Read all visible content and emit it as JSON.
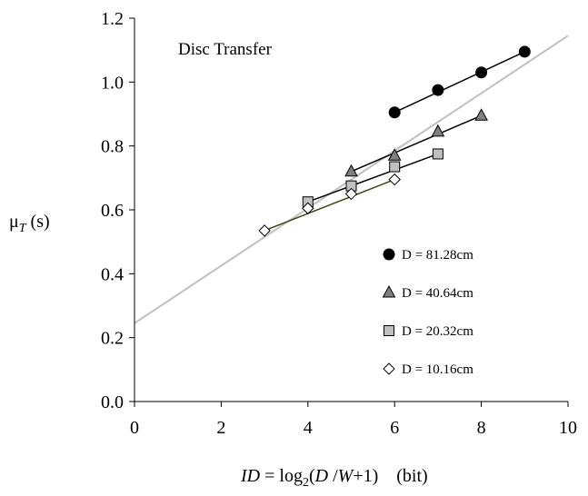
{
  "chart_data": {
    "type": "scatter",
    "annotation": "Disc Transfer",
    "xlabel": {
      "var": "ID",
      "eq": " = log",
      "sub": "2",
      "paren_open": "(",
      "d": "D",
      "slash": " /",
      "w": "W",
      "rest": "+1)",
      "unit": "(bit)"
    },
    "ylabel": {
      "mu": "μ",
      "sub": "T",
      "unit": " (s)"
    },
    "xlim": [
      0,
      10
    ],
    "ylim": [
      0,
      1.2
    ],
    "x_ticks": [
      "0",
      "2",
      "4",
      "6",
      "8",
      "10"
    ],
    "y_ticks": [
      "0.0",
      "0.2",
      "0.4",
      "0.6",
      "0.8",
      "1.0",
      "1.2"
    ],
    "legend_position": "bottom-right",
    "series": [
      {
        "name": "D = 81.28cm",
        "marker": "circle",
        "fill": "#000000",
        "line_color": "#000000",
        "x": [
          6,
          7,
          8,
          9
        ],
        "y": [
          0.905,
          0.975,
          1.03,
          1.095
        ]
      },
      {
        "name": "D = 40.64cm",
        "marker": "triangle",
        "fill": "#808080",
        "line_color": "#000000",
        "x": [
          5,
          6,
          7,
          8
        ],
        "y": [
          0.72,
          0.77,
          0.845,
          0.895
        ]
      },
      {
        "name": "D = 20.32cm",
        "marker": "square",
        "fill": "#c0c0c0",
        "line_color": "#000000",
        "x": [
          4,
          5,
          6,
          7
        ],
        "y": [
          0.625,
          0.675,
          0.735,
          0.775
        ]
      },
      {
        "name": "D = 10.16cm",
        "marker": "diamond",
        "fill": "#ffffff",
        "line_color": "#3d4a0c",
        "x": [
          3,
          4,
          5,
          6
        ],
        "y": [
          0.535,
          0.605,
          0.65,
          0.695
        ]
      }
    ],
    "fit_line": {
      "color": "#c0c0c0",
      "intercept": 0.245,
      "slope": 0.09
    }
  }
}
